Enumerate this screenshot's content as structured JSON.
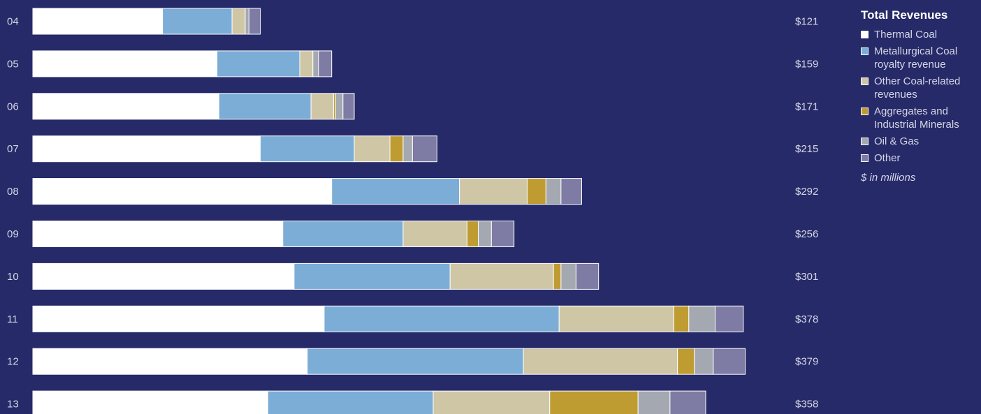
{
  "chart_data": {
    "type": "bar",
    "orientation": "horizontal",
    "stacked": true,
    "title": "Total Revenues",
    "unit_note": "$ in millions",
    "categories": [
      "04",
      "05",
      "06",
      "07",
      "08",
      "09",
      "10",
      "11",
      "12",
      "13"
    ],
    "totals": [
      "$121",
      "$159",
      "$171",
      "$215",
      "$292",
      "$256",
      "$301",
      "$378",
      "$379",
      "$358"
    ],
    "series": [
      {
        "name": "Thermal Coal",
        "color": "#ffffff",
        "values": [
          69,
          98,
          99,
          121,
          159,
          133,
          139,
          155,
          146,
          125
        ]
      },
      {
        "name": "Metallurgical Coal\nroyalty revenue",
        "color": "#7cadd6",
        "values": [
          37,
          44,
          49,
          50,
          68,
          64,
          83,
          125,
          115,
          88
        ]
      },
      {
        "name": "Other Coal-related\nrevenues",
        "color": "#cfc6a6",
        "values": [
          7,
          7,
          12,
          19,
          36,
          34,
          55,
          61,
          82,
          62
        ]
      },
      {
        "name": "Aggregates and\nIndustrial Minerals",
        "color": "#bf9c32",
        "values": [
          0,
          0,
          1,
          7,
          10,
          6,
          4,
          8,
          9,
          47
        ]
      },
      {
        "name": "Oil & Gas",
        "color": "#a4a8b0",
        "values": [
          2,
          3,
          4,
          5,
          8,
          7,
          8,
          14,
          10,
          17
        ]
      },
      {
        "name": "Other",
        "color": "#7e7ba4",
        "values": [
          6,
          7,
          6,
          13,
          11,
          12,
          12,
          15,
          17,
          19
        ]
      }
    ],
    "grid": false,
    "legend_position": "right"
  }
}
